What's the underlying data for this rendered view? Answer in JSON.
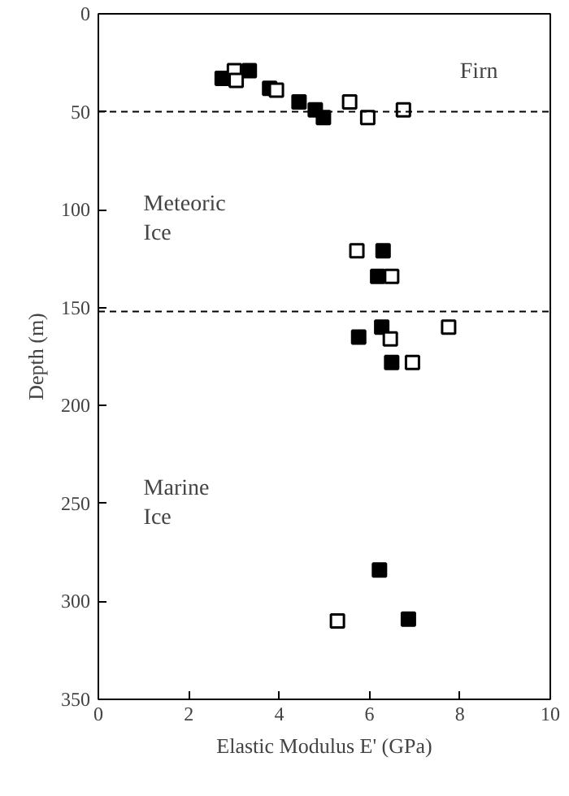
{
  "chart_data": {
    "type": "scatter",
    "xlabel": "Elastic Modulus E' (GPa)",
    "ylabel": "Depth (m)",
    "annotations": [
      "Firn",
      "Meteoric\nIce",
      "Marine\nIce"
    ],
    "series": [
      {
        "color": "#000000",
        "x": [
          2.74,
          3.34,
          3.79,
          4.44,
          4.8,
          4.98,
          6.3,
          6.18,
          6.27,
          5.76,
          6.49,
          6.22,
          6.86
        ],
        "values": [
          33,
          29,
          38,
          45,
          49,
          53,
          121,
          134,
          160,
          165,
          178,
          284,
          309
        ]
      },
      {
        "color": "#ffffff",
        "x": [
          3.01,
          3.05,
          3.94,
          5.56,
          5.96,
          6.75,
          5.72,
          6.49,
          7.75,
          6.46,
          6.95,
          5.29
        ],
        "values": [
          29,
          34,
          39,
          45,
          53,
          49,
          121,
          134,
          160,
          166,
          178,
          310
        ]
      }
    ],
    "xlim": [
      0,
      10
    ],
    "xticks": [
      0,
      2,
      4,
      6,
      8,
      10
    ],
    "ylim": [
      350,
      0
    ],
    "yticks": [
      0,
      50,
      100,
      150,
      200,
      250,
      300,
      350
    ],
    "ref_lines": [
      {
        "axis": "y",
        "value": 50,
        "color": "#000000",
        "line_style": "dashed"
      },
      {
        "axis": "y",
        "value": 152,
        "color": "#000000",
        "line_style": "dashed"
      }
    ],
    "marker": "square"
  }
}
